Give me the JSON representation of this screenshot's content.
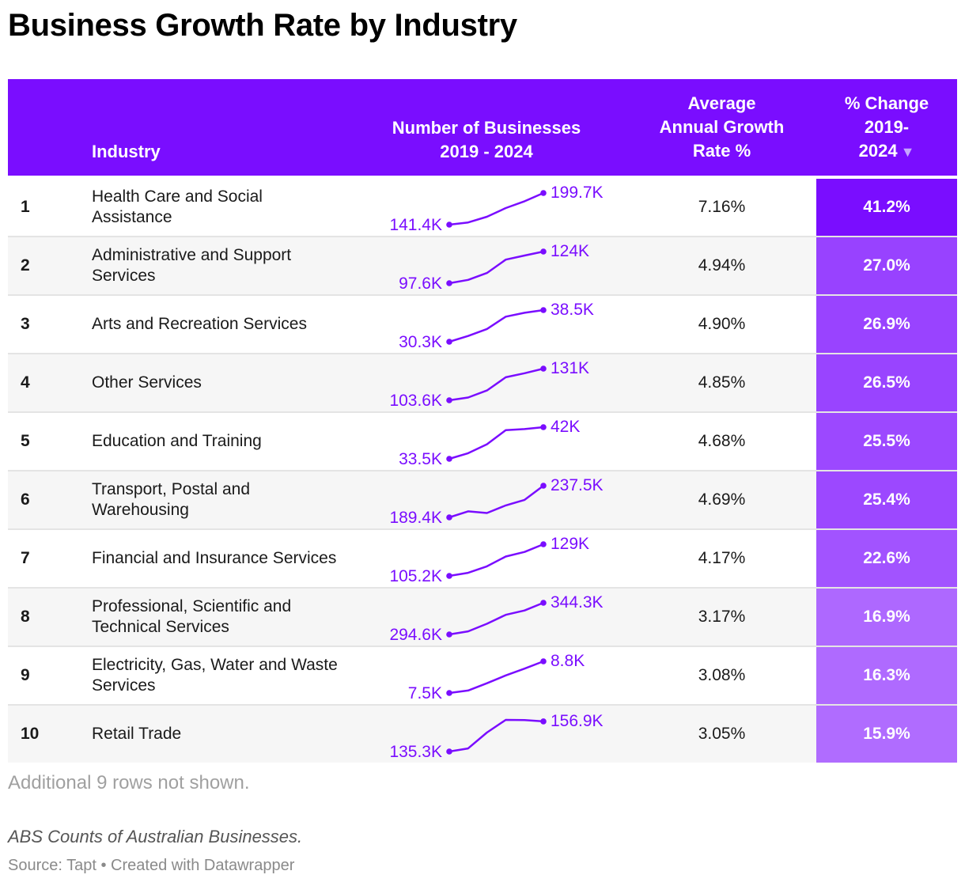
{
  "title": "Business Growth Rate by Industry",
  "header": {
    "industry": "Industry",
    "num_line1": "Number of Businesses",
    "num_line2": "2019 - 2024",
    "avg_line1": "Average",
    "avg_line2": "Annual Growth",
    "avg_line3": "Rate %",
    "pct_line1": "% Change",
    "pct_line2": "2019-",
    "pct_line3": "2024",
    "sort_icon": "▼"
  },
  "chart_data": {
    "type": "table",
    "title": "Business Growth Rate by Industry",
    "columns": [
      "",
      "Industry",
      "Number of Businesses 2019 - 2024",
      "Average Annual Growth Rate %",
      "% Change 2019-2024"
    ],
    "sort": {
      "column": "% Change 2019-2024",
      "order": "descending"
    },
    "series_years": [
      2019,
      2020,
      2021,
      2022,
      2023,
      2024
    ],
    "rows": [
      {
        "rank": "1",
        "industry": "Health Care and Social Assistance",
        "start_label": "141.4K",
        "end_label": "199.7K",
        "values": [
          141.4,
          145.5,
          156.0,
          172.0,
          184.5,
          199.7
        ],
        "avg": "7.16%",
        "pct": "41.2%",
        "pct_value": 41.2
      },
      {
        "rank": "2",
        "industry": "Administrative and Support Services",
        "start_label": "97.6K",
        "end_label": "124K",
        "values": [
          97.6,
          100.4,
          106.1,
          117.3,
          120.7,
          124.0
        ],
        "avg": "4.94%",
        "pct": "27.0%",
        "pct_value": 27.0
      },
      {
        "rank": "3",
        "industry": "Arts and Recreation Services",
        "start_label": "30.3K",
        "end_label": "38.5K",
        "values": [
          30.3,
          31.8,
          33.6,
          36.8,
          37.8,
          38.5
        ],
        "avg": "4.90%",
        "pct": "26.9%",
        "pct_value": 26.9
      },
      {
        "rank": "4",
        "industry": "Other Services",
        "start_label": "103.6K",
        "end_label": "131K",
        "values": [
          103.6,
          106.0,
          112.1,
          123.5,
          127.0,
          131.0
        ],
        "avg": "4.85%",
        "pct": "26.5%",
        "pct_value": 26.5
      },
      {
        "rank": "5",
        "industry": "Education and Training",
        "start_label": "33.5K",
        "end_label": "42K",
        "values": [
          33.5,
          35.0,
          37.4,
          41.2,
          41.5,
          42.0
        ],
        "avg": "4.68%",
        "pct": "25.5%",
        "pct_value": 25.5
      },
      {
        "rank": "6",
        "industry": "Transport, Postal and Warehousing",
        "start_label": "189.4K",
        "end_label": "237.5K",
        "values": [
          189.4,
          198.5,
          196.0,
          207.5,
          216.0,
          237.5
        ],
        "avg": "4.69%",
        "pct": "25.4%",
        "pct_value": 25.4
      },
      {
        "rank": "7",
        "industry": "Financial and Insurance Services",
        "start_label": "105.2K",
        "end_label": "129K",
        "values": [
          105.2,
          107.5,
          112.4,
          119.8,
          123.2,
          129.0
        ],
        "avg": "4.17%",
        "pct": "22.6%",
        "pct_value": 22.6
      },
      {
        "rank": "8",
        "industry": "Professional, Scientific and Technical Services",
        "start_label": "294.6K",
        "end_label": "344.3K",
        "values": [
          294.6,
          299.5,
          311.4,
          325.4,
          332.2,
          344.3
        ],
        "avg": "3.17%",
        "pct": "16.9%",
        "pct_value": 16.9
      },
      {
        "rank": "9",
        "industry": "Electricity, Gas, Water and Waste Services",
        "start_label": "7.5K",
        "end_label": "8.8K",
        "values": [
          7.5,
          7.6,
          7.9,
          8.22,
          8.5,
          8.8
        ],
        "avg": "3.08%",
        "pct": "16.3%",
        "pct_value": 16.3
      },
      {
        "rank": "10",
        "industry": "Retail Trade",
        "start_label": "135.3K",
        "end_label": "156.9K",
        "values": [
          135.3,
          137.5,
          148.9,
          158.0,
          157.9,
          156.9
        ],
        "avg": "3.05%",
        "pct": "15.9%",
        "pct_value": 15.9
      }
    ],
    "colors": {
      "header": "#7a0dff",
      "line": "#7a0dff",
      "label": "#7a0dff",
      "pct_cell_dark": "#7a0dff",
      "pct_cell_light": "#b06cff"
    }
  },
  "footer": {
    "note": "Additional 9 rows not shown.",
    "caption": "ABS Counts of Australian Businesses.",
    "source": "Source: Tapt • Created with Datawrapper"
  }
}
